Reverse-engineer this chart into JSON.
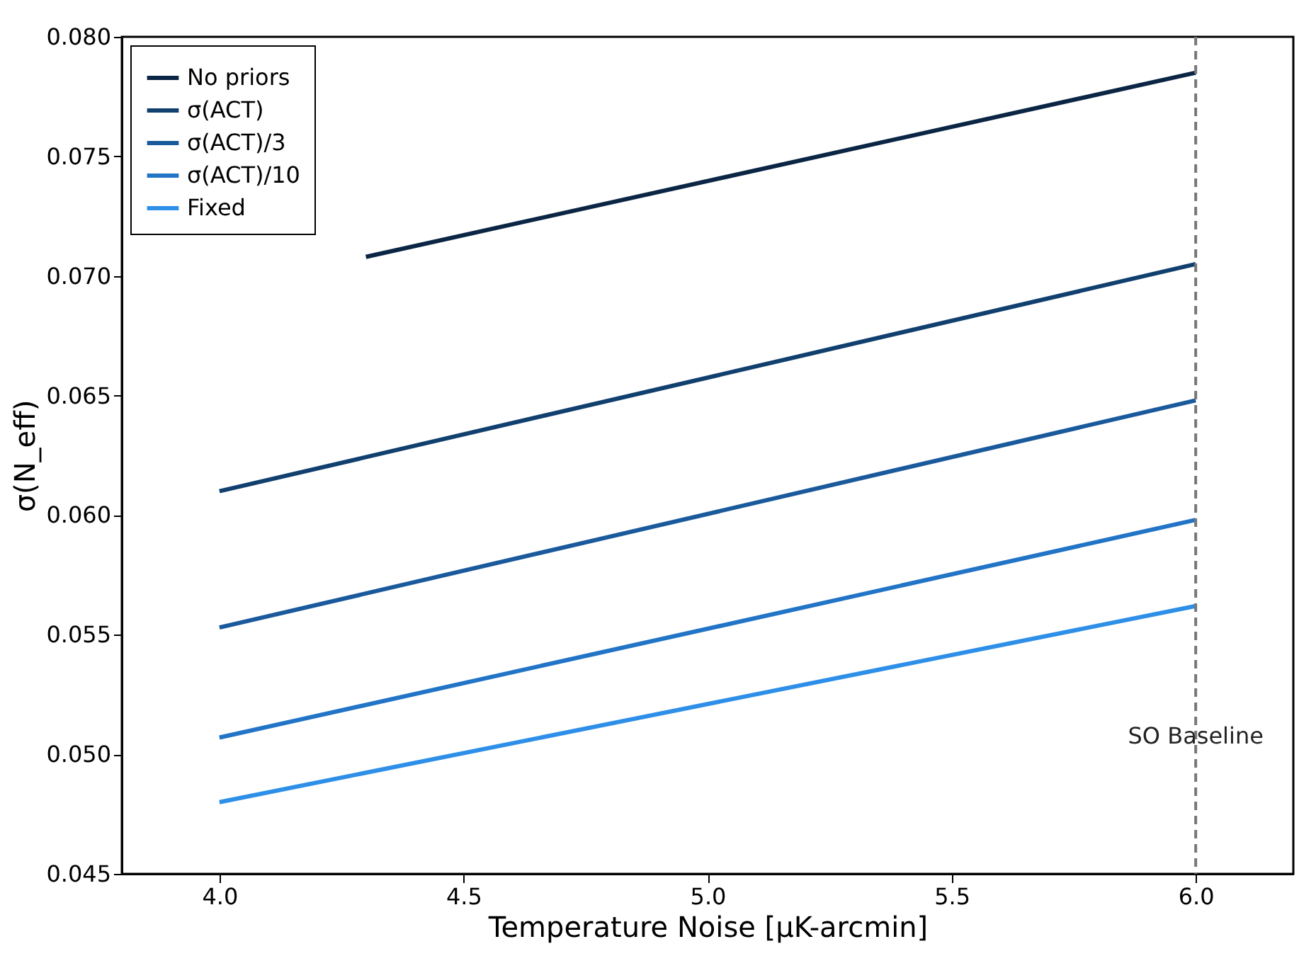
{
  "chart_data": {
    "type": "line",
    "xlabel": "Temperature Noise [μK-arcmin]",
    "ylabel": "σ(N_eff)",
    "xlim": [
      3.8,
      6.2
    ],
    "xticks": [
      {
        "value": 4.0,
        "label": "4.0"
      },
      {
        "value": 4.5,
        "label": "4.5"
      },
      {
        "value": 5.0,
        "label": "5.0"
      },
      {
        "value": 5.5,
        "label": "5.5"
      },
      {
        "value": 6.0,
        "label": "6.0"
      }
    ],
    "ylim": [
      0.045,
      0.08
    ],
    "yticks": [
      {
        "value": 0.045,
        "label": "0.045"
      },
      {
        "value": 0.05,
        "label": "0.050"
      },
      {
        "value": 0.055,
        "label": "0.055"
      },
      {
        "value": 0.06,
        "label": "0.060"
      },
      {
        "value": 0.065,
        "label": "0.065"
      },
      {
        "value": 0.07,
        "label": "0.070"
      },
      {
        "value": 0.075,
        "label": "0.075"
      },
      {
        "value": 0.08,
        "label": "0.080"
      }
    ],
    "grid": false,
    "legend": "top left",
    "marker": "none",
    "line_style": "solid",
    "series": [
      {
        "name": "No priors",
        "color": "#0b2545",
        "x": [
          4.3,
          6.0
        ],
        "values": [
          0.0708,
          0.0785
        ]
      },
      {
        "name": "σ(ACT)",
        "color": "#11406f",
        "x": [
          4.0,
          6.0
        ],
        "values": [
          0.061,
          0.0705
        ]
      },
      {
        "name": "σ(ACT)/3",
        "color": "#1a5a9c",
        "x": [
          4.0,
          6.0
        ],
        "values": [
          0.0553,
          0.0648
        ]
      },
      {
        "name": "σ(ACT)/10",
        "color": "#2274c6",
        "x": [
          4.0,
          6.0
        ],
        "values": [
          0.0507,
          0.0598
        ]
      },
      {
        "name": "Fixed",
        "color": "#2e8fe8",
        "x": [
          4.0,
          6.0
        ],
        "values": [
          0.048,
          0.0562
        ]
      }
    ],
    "ref_lines": [
      {
        "axis": "x",
        "value": 6.0,
        "label": "SO Baseline",
        "color": "#777777",
        "line_style": "dashed"
      }
    ]
  }
}
